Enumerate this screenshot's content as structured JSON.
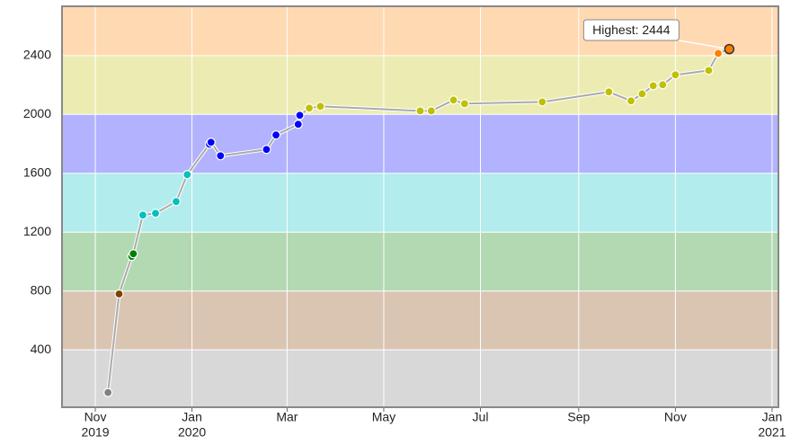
{
  "chart_data": {
    "type": "line",
    "x": [
      "2019-11-09",
      "2019-11-16",
      "2019-11-24",
      "2019-11-25",
      "2019-12-01",
      "2019-12-09",
      "2019-12-22",
      "2019-12-29",
      "2020-01-12",
      "2020-01-13",
      "2020-01-19",
      "2020-02-17",
      "2020-02-23",
      "2020-03-08",
      "2020-03-09",
      "2020-03-15",
      "2020-03-22",
      "2020-05-24",
      "2020-05-31",
      "2020-06-14",
      "2020-06-21",
      "2020-08-09",
      "2020-09-20",
      "2020-10-04",
      "2020-10-11",
      "2020-10-18",
      "2020-10-24",
      "2020-11-01",
      "2020-11-22",
      "2020-11-28",
      "2020-12-05"
    ],
    "values": [
      110,
      780,
      1035,
      1053,
      1316,
      1328,
      1408,
      1591,
      1798,
      1811,
      1719,
      1762,
      1860,
      1933,
      1994,
      2043,
      2055,
      2024,
      2024,
      2098,
      2073,
      2085,
      2153,
      2092,
      2140,
      2195,
      2202,
      2269,
      2299,
      2415,
      2444
    ],
    "line_color": "#aaaaaa",
    "xlim": [
      "2019-10-11",
      "2021-01-05"
    ],
    "xticks": [
      {
        "value": "2019-11-01",
        "label": [
          "Nov",
          "2019"
        ]
      },
      {
        "value": "2020-01-01",
        "label": [
          "Jan",
          "2020"
        ]
      },
      {
        "value": "2020-03-01",
        "label": [
          "Mar"
        ]
      },
      {
        "value": "2020-05-01",
        "label": [
          "May"
        ]
      },
      {
        "value": "2020-07-01",
        "label": [
          "Jul"
        ]
      },
      {
        "value": "2020-09-01",
        "label": [
          "Sep"
        ]
      },
      {
        "value": "2020-11-01",
        "label": [
          "Nov"
        ]
      },
      {
        "value": "2021-01-01",
        "label": [
          "Jan",
          "2021"
        ]
      }
    ],
    "ylim": [
      10,
      2735
    ],
    "yticks": [
      400,
      800,
      1200,
      1600,
      2000,
      2400
    ],
    "grid": true,
    "bands": [
      {
        "max": 400,
        "color": "#d8d8d8",
        "marker": "#808080"
      },
      {
        "max": 800,
        "color": "#d9c5b2",
        "marker": "#804000"
      },
      {
        "max": 1200,
        "color": "#b2d9b2",
        "marker": "#008000"
      },
      {
        "max": 1600,
        "color": "#b2ecec",
        "marker": "#00c0c0"
      },
      {
        "max": 2000,
        "color": "#b2b2ff",
        "marker": "#0000ff"
      },
      {
        "max": 2400,
        "color": "#ececb2",
        "marker": "#c0c000"
      },
      {
        "max": 2735,
        "color": "#ffd9b2",
        "marker": "#ff8000"
      }
    ],
    "annotation": "Highest: 2444"
  }
}
